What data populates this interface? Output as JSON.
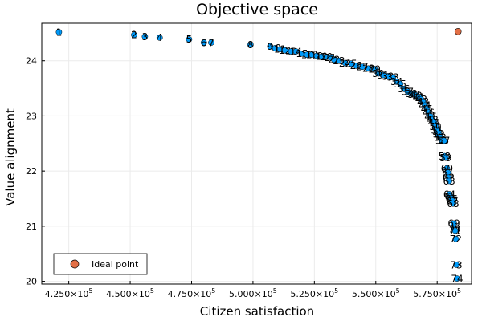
{
  "chart_data": {
    "type": "scatter",
    "title": "Objective space",
    "xlabel": "Citizen satisfaction",
    "ylabel": "Value alignment",
    "xlim": [
      414000,
      589000
    ],
    "ylim": [
      19.95,
      24.68
    ],
    "x_ticks": [
      {
        "value": 425000,
        "mantissa": "4.250×10",
        "exp": "5"
      },
      {
        "value": 450000,
        "mantissa": "4.500×10",
        "exp": "5"
      },
      {
        "value": 475000,
        "mantissa": "4.750×10",
        "exp": "5"
      },
      {
        "value": 500000,
        "mantissa": "5.000×10",
        "exp": "5"
      },
      {
        "value": 525000,
        "mantissa": "5.250×10",
        "exp": "5"
      },
      {
        "value": 550000,
        "mantissa": "5.500×10",
        "exp": "5"
      },
      {
        "value": 575000,
        "mantissa": "5.750×10",
        "exp": "5"
      }
    ],
    "y_ticks": [
      20,
      21,
      22,
      23,
      24
    ],
    "grid": true,
    "legend": {
      "position": "bottom-left",
      "entries": [
        {
          "label": "Ideal point",
          "color": "#e26f46"
        }
      ]
    },
    "series": [
      {
        "color": "#009af9",
        "points": [
          {
            "label": "1",
            "x": 421000,
            "y": 24.52
          },
          {
            "label": "2",
            "x": 451600,
            "y": 24.47
          },
          {
            "label": "3",
            "x": 456000,
            "y": 24.44
          },
          {
            "label": "4",
            "x": 462000,
            "y": 24.42
          },
          {
            "label": "5",
            "x": 474000,
            "y": 24.39
          },
          {
            "label": "6",
            "x": 480000,
            "y": 24.33
          },
          {
            "label": "7",
            "x": 483000,
            "y": 24.33
          },
          {
            "label": "8",
            "x": 499000,
            "y": 24.29
          },
          {
            "label": "9",
            "x": 507000,
            "y": 24.26
          },
          {
            "label": "10",
            "x": 509000,
            "y": 24.23
          },
          {
            "label": "11",
            "x": 511000,
            "y": 24.21
          },
          {
            "label": "12",
            "x": 513000,
            "y": 24.19
          },
          {
            "label": "13",
            "x": 515500,
            "y": 24.17
          },
          {
            "label": "14",
            "x": 517500,
            "y": 24.17
          },
          {
            "label": "15",
            "x": 520000,
            "y": 24.13
          },
          {
            "label": "16",
            "x": 522000,
            "y": 24.11
          },
          {
            "label": "17",
            "x": 524000,
            "y": 24.11
          },
          {
            "label": "18",
            "x": 526000,
            "y": 24.09
          },
          {
            "label": "19",
            "x": 528000,
            "y": 24.08
          },
          {
            "label": "20",
            "x": 530000,
            "y": 24.07
          },
          {
            "label": "21",
            "x": 531500,
            "y": 24.06
          },
          {
            "label": "22",
            "x": 533000,
            "y": 24.02
          },
          {
            "label": "23",
            "x": 535000,
            "y": 24.0
          },
          {
            "label": "24",
            "x": 537500,
            "y": 23.96
          },
          {
            "label": "25",
            "x": 540000,
            "y": 23.95
          },
          {
            "label": "26",
            "x": 542000,
            "y": 23.91
          },
          {
            "label": "27",
            "x": 544500,
            "y": 23.89
          },
          {
            "label": "28",
            "x": 547000,
            "y": 23.86
          },
          {
            "label": "29",
            "x": 549500,
            "y": 23.85
          },
          {
            "label": "30",
            "x": 551000,
            "y": 23.77
          },
          {
            "label": "31",
            "x": 553000,
            "y": 23.74
          },
          {
            "label": "32",
            "x": 555000,
            "y": 23.72
          },
          {
            "label": "33",
            "x": 557000,
            "y": 23.7
          },
          {
            "label": "34",
            "x": 558500,
            "y": 23.62
          },
          {
            "label": "35",
            "x": 560000,
            "y": 23.58
          },
          {
            "label": "36",
            "x": 561500,
            "y": 23.49
          },
          {
            "label": "37",
            "x": 563000,
            "y": 23.44
          },
          {
            "label": "38",
            "x": 564500,
            "y": 23.4
          },
          {
            "label": "39",
            "x": 565500,
            "y": 23.39
          },
          {
            "label": "40",
            "x": 566500,
            "y": 23.37
          },
          {
            "label": "41",
            "x": 567500,
            "y": 23.34
          },
          {
            "label": "42",
            "x": 568500,
            "y": 23.3
          },
          {
            "label": "43",
            "x": 569300,
            "y": 23.26
          },
          {
            "label": "44",
            "x": 570000,
            "y": 23.19
          },
          {
            "label": "45",
            "x": 570800,
            "y": 23.13
          },
          {
            "label": "46",
            "x": 571500,
            "y": 23.06
          },
          {
            "label": "47",
            "x": 572300,
            "y": 22.99
          },
          {
            "label": "48",
            "x": 573000,
            "y": 22.93
          },
          {
            "label": "49",
            "x": 573700,
            "y": 22.88
          },
          {
            "label": "50",
            "x": 574300,
            "y": 22.81
          },
          {
            "label": "51",
            "x": 575000,
            "y": 22.74
          },
          {
            "label": "52",
            "x": 575700,
            "y": 22.67
          },
          {
            "label": "53",
            "x": 576300,
            "y": 22.61
          },
          {
            "label": "54",
            "x": 576800,
            "y": 22.55
          },
          {
            "label": "55",
            "x": 575500,
            "y": 22.72
          },
          {
            "label": "56",
            "x": 577300,
            "y": 22.55
          },
          {
            "label": "57",
            "x": 577800,
            "y": 22.55
          },
          {
            "label": "58",
            "x": 578000,
            "y": 22.27
          },
          {
            "label": "59",
            "x": 578500,
            "y": 22.24
          },
          {
            "label": "60",
            "x": 579000,
            "y": 22.05
          },
          {
            "label": "61",
            "x": 579400,
            "y": 21.97
          },
          {
            "label": "62",
            "x": 579700,
            "y": 21.88
          },
          {
            "label": "63",
            "x": 579900,
            "y": 21.82
          },
          {
            "label": "64",
            "x": 580000,
            "y": 21.58
          },
          {
            "label": "65",
            "x": 580500,
            "y": 21.54
          },
          {
            "label": "66",
            "x": 580900,
            "y": 21.5
          },
          {
            "label": "67",
            "x": 581200,
            "y": 21.46
          },
          {
            "label": "68",
            "x": 581500,
            "y": 21.41
          },
          {
            "label": "69",
            "x": 581800,
            "y": 21.05
          },
          {
            "label": "70",
            "x": 582000,
            "y": 20.95
          },
          {
            "label": "71",
            "x": 582300,
            "y": 20.92
          },
          {
            "label": "72",
            "x": 582600,
            "y": 20.77
          },
          {
            "label": "73",
            "x": 582800,
            "y": 20.3
          },
          {
            "label": "74",
            "x": 583100,
            "y": 20.05
          }
        ]
      },
      {
        "name": "Ideal point",
        "color": "#e26f46",
        "points": [
          {
            "x": 583500,
            "y": 24.53
          }
        ]
      }
    ]
  }
}
